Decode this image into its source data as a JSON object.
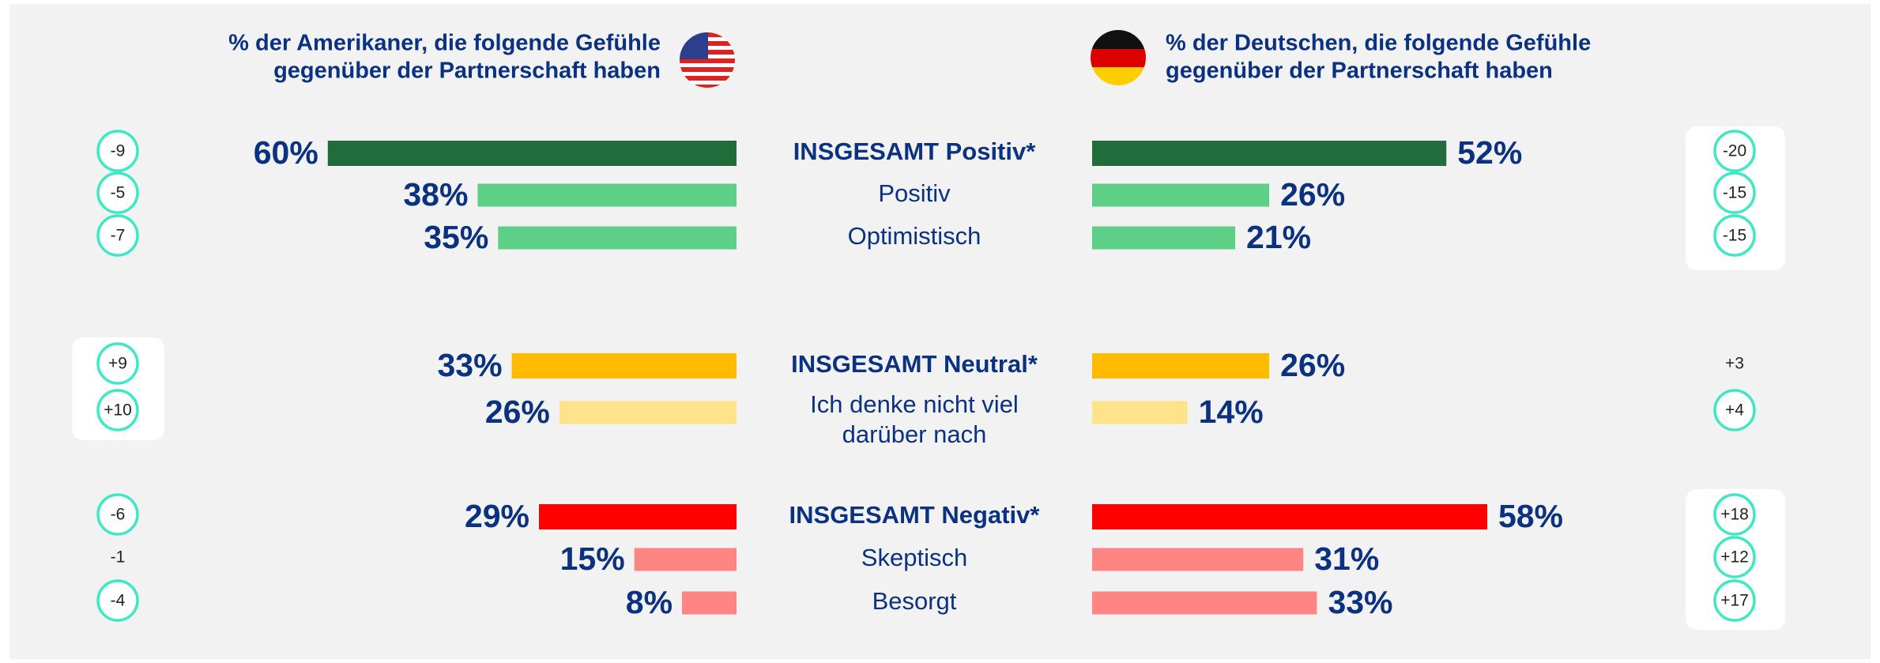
{
  "chart_data": {
    "type": "butterfly",
    "categories": [
      "INSGESAMT Positiv*",
      "Positiv",
      "Optimistisch",
      "INSGESAMT Neutral*",
      [
        "Ich denke nicht viel",
        "darüber nach"
      ],
      "INSGESAMT Negativ*",
      "Skeptisch",
      "Besorgt"
    ],
    "category_bold": [
      true,
      false,
      false,
      true,
      false,
      true,
      false,
      false
    ],
    "colors": [
      "#226b3a",
      "#5ecf87",
      "#5ecf87",
      "#ffbb00",
      "#ffe38a",
      "#ff0000",
      "#ff8585",
      "#ff8585"
    ],
    "series": [
      {
        "name": [
          "% der Amerikaner, die folgende Gefühle",
          "gegenüber der Partnerschaft haben"
        ],
        "values": [
          60,
          38,
          35,
          33,
          26,
          29,
          15,
          8
        ],
        "value_labels": [
          "60%",
          "38%",
          "35%",
          "33%",
          "26%",
          "29%",
          "15%",
          "8%"
        ],
        "changes": [
          -9,
          -5,
          -7,
          9,
          10,
          -6,
          -1,
          -4
        ],
        "change_labels": [
          "-9",
          "-5",
          "-7",
          "+9",
          "+10",
          "-6",
          "-1",
          "-4"
        ],
        "change_circled": [
          true,
          true,
          true,
          true,
          true,
          true,
          false,
          true
        ]
      },
      {
        "name": [
          "% der Deutschen, die folgende Gefühle",
          "gegenüber der Partnerschaft haben"
        ],
        "values": [
          52,
          26,
          21,
          26,
          14,
          58,
          31,
          33
        ],
        "value_labels": [
          "52%",
          "26%",
          "21%",
          "26%",
          "14%",
          "58%",
          "31%",
          "33%"
        ],
        "changes": [
          -20,
          -15,
          -15,
          3,
          4,
          18,
          12,
          17
        ],
        "change_labels": [
          "-20",
          "-15",
          "-15",
          "+3",
          "+4",
          "+18",
          "+12",
          "+17"
        ],
        "change_circled": [
          true,
          true,
          true,
          false,
          true,
          true,
          true,
          true
        ]
      }
    ]
  }
}
